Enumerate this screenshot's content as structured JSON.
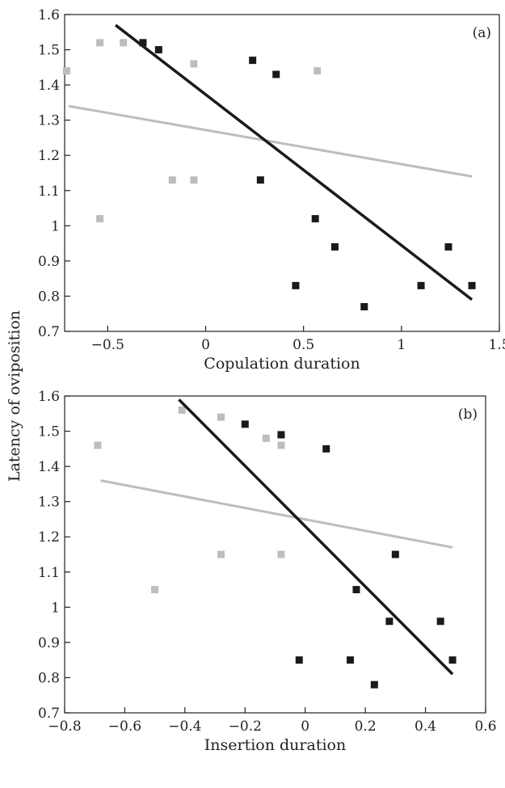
{
  "shared_ylabel": "Latency of oviposition",
  "chart_data": [
    {
      "type": "scatter",
      "panel_label": "(a)",
      "xlabel": "Copulation duration",
      "xlim": [
        -0.72,
        1.5
      ],
      "ylim": [
        0.7,
        1.6
      ],
      "xticks": [
        "−0.5",
        "0",
        "0.5",
        "1",
        "1.5"
      ],
      "xtick_values": [
        -0.5,
        0,
        0.5,
        1,
        1.5
      ],
      "yticks": [
        "0.7",
        "0.8",
        "0.9",
        "1",
        "1.1",
        "1.2",
        "1.3",
        "1.4",
        "1.5",
        "1.6"
      ],
      "ytick_values": [
        0.7,
        0.8,
        0.9,
        1,
        1.1,
        1.2,
        1.3,
        1.4,
        1.5,
        1.6
      ],
      "series": [
        {
          "color": "#1a1a1a",
          "points": [
            [
              -0.32,
              1.52
            ],
            [
              -0.24,
              1.5
            ],
            [
              0.24,
              1.47
            ],
            [
              0.36,
              1.43
            ],
            [
              0.28,
              1.13
            ],
            [
              0.56,
              1.02
            ],
            [
              0.66,
              0.94
            ],
            [
              0.46,
              0.83
            ],
            [
              0.81,
              0.77
            ],
            [
              1.1,
              0.83
            ],
            [
              1.24,
              0.94
            ],
            [
              1.36,
              0.83
            ]
          ],
          "fit_line": [
            [
              -0.46,
              1.57
            ],
            [
              1.36,
              0.79
            ]
          ]
        },
        {
          "color": "#bdbdbd",
          "points": [
            [
              -0.71,
              1.44
            ],
            [
              -0.54,
              1.52
            ],
            [
              -0.42,
              1.52
            ],
            [
              -0.06,
              1.46
            ],
            [
              0.57,
              1.44
            ],
            [
              -0.17,
              1.13
            ],
            [
              -0.06,
              1.13
            ],
            [
              -0.54,
              1.02
            ]
          ],
          "fit_line": [
            [
              -0.7,
              1.34
            ],
            [
              1.36,
              1.14
            ]
          ]
        }
      ]
    },
    {
      "type": "scatter",
      "panel_label": "(b)",
      "xlabel": "Insertion duration",
      "xlim": [
        -0.8,
        0.6
      ],
      "ylim": [
        0.7,
        1.6
      ],
      "xticks": [
        "−0.8",
        "−0.6",
        "−0.4",
        "−0.2",
        "0",
        "0.2",
        "0.4",
        "0.6"
      ],
      "xtick_values": [
        -0.8,
        -0.6,
        -0.4,
        -0.2,
        0,
        0.2,
        0.4,
        0.6
      ],
      "yticks": [
        "0.7",
        "0.8",
        "0.9",
        "1",
        "1.1",
        "1.2",
        "1.3",
        "1.4",
        "1.5",
        "1.6"
      ],
      "ytick_values": [
        0.7,
        0.8,
        0.9,
        1,
        1.1,
        1.2,
        1.3,
        1.4,
        1.5,
        1.6
      ],
      "series": [
        {
          "color": "#1a1a1a",
          "points": [
            [
              -0.2,
              1.52
            ],
            [
              -0.08,
              1.49
            ],
            [
              0.07,
              1.45
            ],
            [
              0.3,
              1.15
            ],
            [
              0.17,
              1.05
            ],
            [
              0.28,
              0.96
            ],
            [
              0.45,
              0.96
            ],
            [
              -0.02,
              0.85
            ],
            [
              0.15,
              0.85
            ],
            [
              0.49,
              0.85
            ],
            [
              0.23,
              0.78
            ]
          ],
          "fit_line": [
            [
              -0.42,
              1.59
            ],
            [
              0.49,
              0.81
            ]
          ]
        },
        {
          "color": "#bdbdbd",
          "points": [
            [
              -0.69,
              1.46
            ],
            [
              -0.41,
              1.56
            ],
            [
              -0.28,
              1.54
            ],
            [
              -0.13,
              1.48
            ],
            [
              -0.08,
              1.46
            ],
            [
              -0.28,
              1.15
            ],
            [
              -0.08,
              1.15
            ],
            [
              -0.5,
              1.05
            ]
          ],
          "fit_line": [
            [
              -0.68,
              1.36
            ],
            [
              0.49,
              1.17
            ]
          ]
        }
      ]
    }
  ]
}
